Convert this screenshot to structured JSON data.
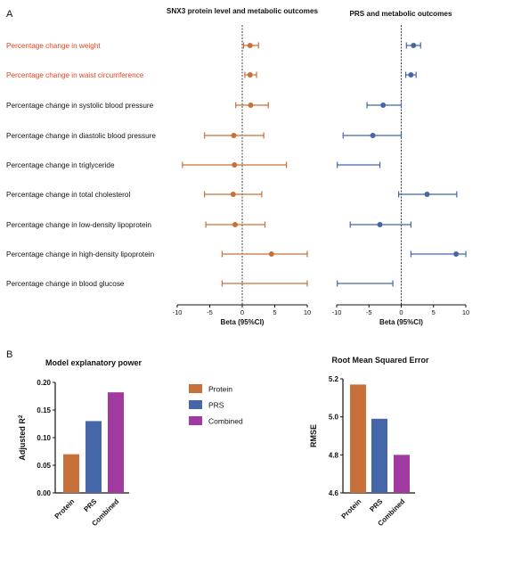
{
  "colors": {
    "protein": "#c8703a",
    "prs": "#4566a8",
    "combined": "#a03aa0",
    "highlight": "#e2461f",
    "text": "#111111"
  },
  "panel_labels": {
    "a": "A",
    "b": "B"
  },
  "outcomes": [
    {
      "label": "Percentage change in weight",
      "highlight": true
    },
    {
      "label": "Percentage change in waist circumference",
      "highlight": true
    },
    {
      "label": "Percentage change in systolic blood pressure",
      "highlight": false
    },
    {
      "label": "Percentage change in diastolic blood pressure",
      "highlight": false
    },
    {
      "label": "Percentage change in triglyceride",
      "highlight": false
    },
    {
      "label": "Percentage change in total cholesterol",
      "highlight": false
    },
    {
      "label": "Percentage change in low-density lipoprotein",
      "highlight": false
    },
    {
      "label": "Percentage change in high-density lipoprotein",
      "highlight": false
    },
    {
      "label": "Percentage change in blood glucose",
      "highlight": false
    }
  ],
  "chart_data": [
    {
      "type": "scatter",
      "subtype": "forest",
      "title": "SNX3 protein level and metabolic outcomes",
      "xlabel": "Beta (95%CI)",
      "xlim": [
        -10,
        10
      ],
      "xticks": [
        "-10",
        "-5",
        "0",
        "5",
        "10"
      ],
      "color": "#c8703a",
      "points": [
        {
          "est": 1.2,
          "lo": 0.2,
          "hi": 2.5,
          "dot": true
        },
        {
          "est": 1.2,
          "lo": 0.4,
          "hi": 2.2,
          "dot": true
        },
        {
          "est": 1.3,
          "lo": -1.0,
          "hi": 4.0,
          "dot": true
        },
        {
          "est": -1.3,
          "lo": -5.8,
          "hi": 3.3,
          "dot": true
        },
        {
          "est": -1.2,
          "lo": -9.2,
          "hi": 6.8,
          "dot": true
        },
        {
          "est": -1.4,
          "lo": -5.8,
          "hi": 3.0,
          "dot": true
        },
        {
          "est": -1.1,
          "lo": -5.6,
          "hi": 3.5,
          "dot": true
        },
        {
          "est": 4.5,
          "lo": -3.1,
          "hi": 10.0,
          "dot": true
        },
        {
          "est": null,
          "lo": -3.1,
          "hi": 10.0,
          "dot": false
        }
      ]
    },
    {
      "type": "scatter",
      "subtype": "forest",
      "title": "PRS and metabolic outcomes",
      "xlabel": "Beta (95%CI)",
      "xlim": [
        -10,
        10
      ],
      "xticks": [
        "-10",
        "-5",
        "0",
        "5",
        "10"
      ],
      "color": "#4566a8",
      "points": [
        {
          "est": 1.9,
          "lo": 0.8,
          "hi": 3.0,
          "dot": true
        },
        {
          "est": 1.5,
          "lo": 0.7,
          "hi": 2.3,
          "dot": true
        },
        {
          "est": -2.8,
          "lo": -5.3,
          "hi": 0.0,
          "dot": true
        },
        {
          "est": -4.4,
          "lo": -9.0,
          "hi": 0.0,
          "dot": true
        },
        {
          "est": null,
          "lo": -9.9,
          "hi": -3.3,
          "dot": false
        },
        {
          "est": 4.0,
          "lo": -0.4,
          "hi": 8.6,
          "dot": true
        },
        {
          "est": -3.3,
          "lo": -7.9,
          "hi": 1.5,
          "dot": true
        },
        {
          "est": 8.5,
          "lo": 1.5,
          "hi": 10.0,
          "dot": true
        },
        {
          "est": null,
          "lo": -9.9,
          "hi": -1.3,
          "dot": false
        }
      ]
    },
    {
      "type": "bar",
      "title": "Model explanatory power",
      "ylabel": "Adjusted R",
      "ylabel_sup": "2",
      "categories": [
        "Protein",
        "PRS",
        "Combined"
      ],
      "values": [
        0.07,
        0.13,
        0.182
      ],
      "ylim": [
        0,
        0.2
      ],
      "yticks": [
        "0.00",
        "0.05",
        "0.10",
        "0.15",
        "0.20"
      ],
      "legend": [
        "Protein",
        "PRS",
        "Combined"
      ]
    },
    {
      "type": "bar",
      "title": "Root Mean Squared Error",
      "ylabel": "RMSE",
      "categories": [
        "Protein",
        "PRS",
        "Combined"
      ],
      "values": [
        5.17,
        4.99,
        4.8
      ],
      "ylim": [
        4.6,
        5.2
      ],
      "yticks": [
        "4.6",
        "4.8",
        "5.0",
        "5.2"
      ]
    }
  ]
}
